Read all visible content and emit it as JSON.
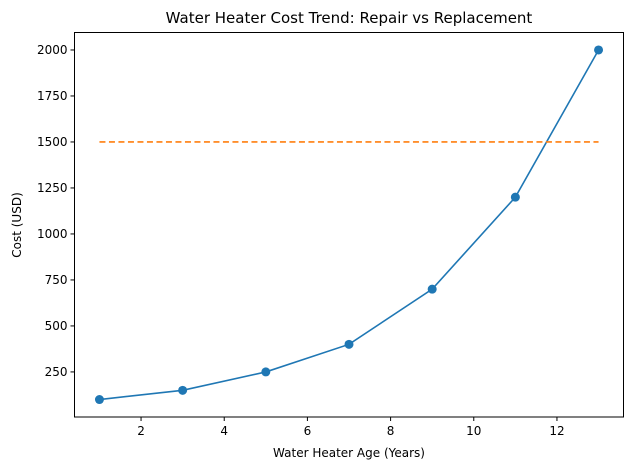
{
  "chart_data": {
    "type": "line",
    "title": "Water Heater Cost Trend: Repair vs Replacement",
    "xlabel": "Water Heater Age (Years)",
    "ylabel": "Cost (USD)",
    "xlim": [
      0.4,
      13.6
    ],
    "ylim": [
      5,
      2095
    ],
    "xticks": [
      2,
      4,
      6,
      8,
      10,
      12
    ],
    "yticks": [
      250,
      500,
      750,
      1000,
      1250,
      1500,
      1750,
      2000
    ],
    "grid": false,
    "series": [
      {
        "style": "solid line with circle markers",
        "color": "#1f77b4",
        "x": [
          1,
          3,
          5,
          7,
          9,
          11,
          13
        ],
        "y": [
          100,
          150,
          250,
          400,
          700,
          1200,
          2000
        ]
      },
      {
        "style": "dashed line",
        "color": "#ff7f0e",
        "x": [
          1,
          13
        ],
        "y": [
          1500,
          1500
        ]
      }
    ]
  }
}
